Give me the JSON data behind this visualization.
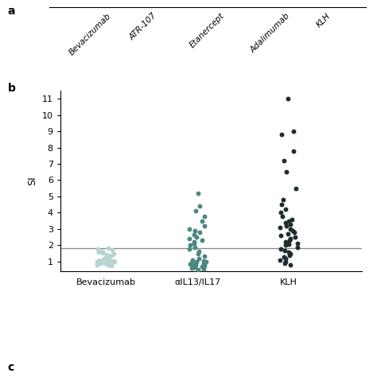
{
  "panel_a_label": "a",
  "panel_b_label": "b",
  "panel_c_label": "c",
  "top_categories": [
    "Bevacizumab",
    "ATR-107",
    "Etanercept",
    "Adalimumab",
    "KLH"
  ],
  "bottom_categories": [
    "Bevacizumab",
    "αIL13/IL17",
    "KLH"
  ],
  "ylabel_b": "SI",
  "hline_y": 1.85,
  "ylim_b": [
    0.4,
    11.5
  ],
  "yticks_b": [
    1,
    2,
    3,
    4,
    5,
    6,
    7,
    8,
    9,
    10,
    11
  ],
  "bev_color": "#b8d4d0",
  "alpha_color": "#4d8880",
  "klh_color": "#1e2e2e",
  "bev_data": [
    0.75,
    0.8,
    0.82,
    0.85,
    0.88,
    0.9,
    0.92,
    0.93,
    0.95,
    0.96,
    0.97,
    0.98,
    0.99,
    1.0,
    1.01,
    1.02,
    1.03,
    1.05,
    1.07,
    1.08,
    1.1,
    1.12,
    1.14,
    1.15,
    1.18,
    1.2,
    1.25,
    1.28,
    1.3,
    1.35,
    1.4,
    1.45,
    1.5,
    1.55,
    1.6,
    1.65,
    1.7,
    1.75,
    1.8,
    1.85
  ],
  "alpha_data": [
    0.5,
    0.55,
    0.6,
    0.65,
    0.68,
    0.7,
    0.72,
    0.75,
    0.78,
    0.8,
    0.82,
    0.85,
    0.88,
    0.9,
    0.92,
    0.95,
    0.98,
    1.0,
    1.05,
    1.1,
    1.2,
    1.35,
    1.5,
    1.65,
    1.8,
    1.9,
    2.0,
    2.1,
    2.2,
    2.3,
    2.4,
    2.5,
    2.65,
    2.8,
    2.9,
    3.0,
    3.2,
    3.5,
    3.8,
    4.1,
    4.4,
    5.2
  ],
  "klh_data": [
    0.8,
    0.9,
    1.0,
    1.1,
    1.2,
    1.3,
    1.4,
    1.5,
    1.6,
    1.7,
    1.8,
    1.9,
    2.0,
    2.05,
    2.1,
    2.15,
    2.2,
    2.3,
    2.4,
    2.5,
    2.6,
    2.7,
    2.8,
    2.9,
    3.0,
    3.1,
    3.2,
    3.3,
    3.4,
    3.5,
    3.6,
    3.8,
    4.0,
    4.2,
    4.5,
    4.8,
    5.5,
    6.5,
    7.2,
    7.8,
    8.8,
    9.0,
    11.0
  ]
}
